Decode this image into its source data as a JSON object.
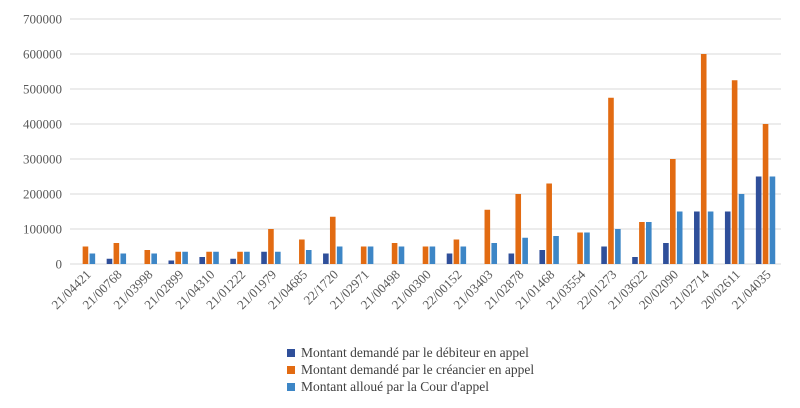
{
  "chart_data": {
    "type": "bar",
    "categories": [
      "21/04421",
      "21/00768",
      "21/03998",
      "21/02899",
      "21/04310",
      "21/01222",
      "21/01979",
      "21/04685",
      "22/1720",
      "21/02971",
      "21/00498",
      "21/00300",
      "22/00152",
      "21/03403",
      "21/02878",
      "21/01468",
      "21/03554",
      "22/01273",
      "21/03622",
      "20/02090",
      "21/02714",
      "20/02611",
      "21/04035"
    ],
    "series": [
      {
        "name": "Montant demandé par le débiteur en appel",
        "color": "#2F4F9A",
        "values": [
          0,
          15000,
          0,
          10000,
          20000,
          15000,
          35000,
          0,
          30000,
          0,
          0,
          0,
          30000,
          0,
          30000,
          40000,
          0,
          50000,
          20000,
          60000,
          150000,
          150000,
          250000
        ]
      },
      {
        "name": "Montant demandé par le créancier en appel",
        "color": "#E26B12",
        "values": [
          50000,
          60000,
          40000,
          35000,
          35000,
          35000,
          100000,
          70000,
          135000,
          50000,
          60000,
          50000,
          70000,
          155000,
          200000,
          230000,
          90000,
          475000,
          120000,
          300000,
          600000,
          525000,
          400000
        ]
      },
      {
        "name": "Montant alloué par la Cour d'appel",
        "color": "#3D86C6",
        "values": [
          30000,
          30000,
          30000,
          35000,
          35000,
          35000,
          35000,
          40000,
          50000,
          50000,
          50000,
          50000,
          50000,
          60000,
          75000,
          80000,
          90000,
          100000,
          120000,
          150000,
          150000,
          200000,
          250000
        ]
      }
    ],
    "yticks": [
      "0",
      "100000",
      "200000",
      "300000",
      "400000",
      "500000",
      "600000",
      "700000"
    ],
    "ylim": [
      0,
      700000
    ],
    "grid": true,
    "legend_position": "bottom"
  }
}
